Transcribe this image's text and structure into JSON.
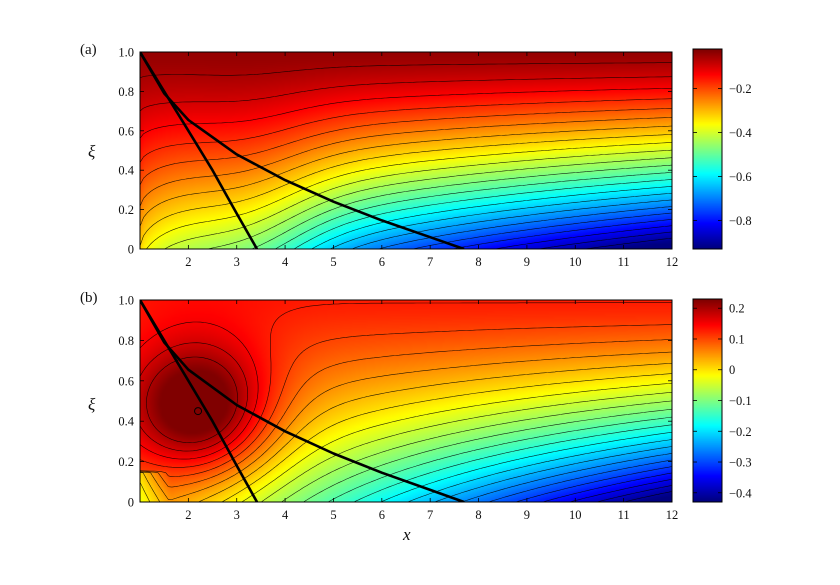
{
  "chart_data": [
    {
      "type": "heatmap",
      "panel_label": "(a)",
      "xlabel": "",
      "ylabel": "ξ",
      "xlim": [
        1,
        12
      ],
      "ylim": [
        0,
        1
      ],
      "xticks": [
        2,
        3,
        4,
        5,
        6,
        7,
        8,
        9,
        10,
        11,
        12
      ],
      "yticks": [
        0,
        0.2,
        0.4,
        0.6,
        0.8,
        1.0
      ],
      "ytick_labels": [
        "0",
        "0.2",
        "0.4",
        "0.6",
        "0.8",
        "1.0"
      ],
      "colorbar": {
        "range": [
          -0.93,
          -0.02
        ],
        "ticks": [
          -0.8,
          -0.6,
          -0.4,
          -0.2
        ],
        "tick_labels": [
          "−0.8",
          "−0.6",
          "−0.4",
          "−0.2"
        ]
      },
      "contour_levels": 24,
      "curves": [
        {
          "points": [
            [
              1.0,
              1.0
            ],
            [
              1.5,
              0.8
            ],
            [
              2.0,
              0.6
            ],
            [
              2.5,
              0.4
            ],
            [
              3.0,
              0.18
            ],
            [
              3.42,
              0.0
            ]
          ]
        },
        {
          "points": [
            [
              1.0,
              1.0
            ],
            [
              1.5,
              0.79
            ],
            [
              2.0,
              0.655
            ],
            [
              3.0,
              0.48
            ],
            [
              4.0,
              0.35
            ],
            [
              5.0,
              0.24
            ],
            [
              6.0,
              0.145
            ],
            [
              7.0,
              0.06
            ],
            [
              7.7,
              0.0
            ]
          ]
        }
      ]
    },
    {
      "type": "heatmap",
      "panel_label": "(b)",
      "xlabel": "x",
      "ylabel": "ξ",
      "xlim": [
        1,
        12
      ],
      "ylim": [
        0,
        1
      ],
      "xticks": [
        2,
        3,
        4,
        5,
        6,
        7,
        8,
        9,
        10,
        11,
        12
      ],
      "yticks": [
        0,
        0.2,
        0.4,
        0.6,
        0.8,
        1.0
      ],
      "ytick_labels": [
        "0",
        "0.2",
        "0.4",
        "0.6",
        "0.8",
        "1.0"
      ],
      "colorbar": {
        "range": [
          -0.43,
          0.23
        ],
        "ticks": [
          -0.4,
          -0.3,
          -0.2,
          -0.1,
          0,
          0.1,
          0.2
        ],
        "tick_labels": [
          "−0.4",
          "−0.3",
          "−0.2",
          "−0.1",
          "0",
          "0.1",
          "0.2"
        ]
      },
      "contour_levels": 26,
      "maximum_marker": {
        "x": 2.2,
        "y": 0.45
      },
      "curves": [
        {
          "points": [
            [
              1.0,
              1.0
            ],
            [
              1.5,
              0.8
            ],
            [
              2.0,
              0.6
            ],
            [
              2.5,
              0.4
            ],
            [
              3.0,
              0.18
            ],
            [
              3.42,
              0.0
            ]
          ]
        },
        {
          "points": [
            [
              1.0,
              1.0
            ],
            [
              1.5,
              0.79
            ],
            [
              2.0,
              0.655
            ],
            [
              3.0,
              0.48
            ],
            [
              4.0,
              0.35
            ],
            [
              5.0,
              0.24
            ],
            [
              6.0,
              0.145
            ],
            [
              7.0,
              0.06
            ],
            [
              7.7,
              0.0
            ]
          ]
        }
      ]
    }
  ]
}
